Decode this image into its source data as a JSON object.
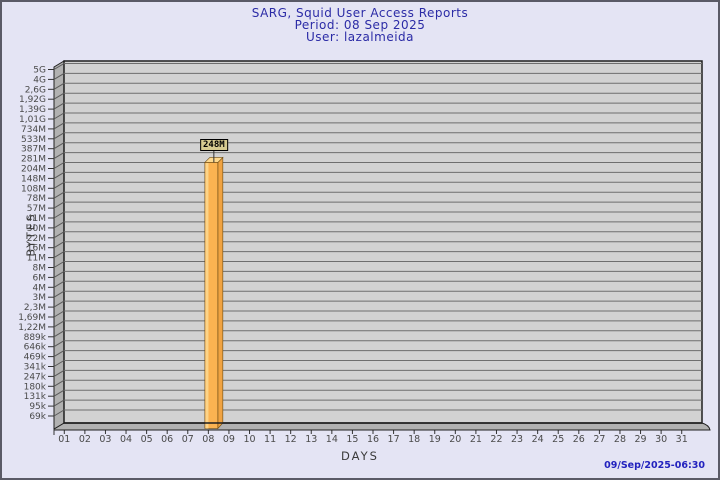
{
  "header": {
    "title": "SARG, Squid User Access Reports",
    "period": "Period: 08 Sep 2025",
    "user": "User: lazalmeida"
  },
  "footer": {
    "timestamp": "09/Sep/2025-06:30"
  },
  "chart_data": {
    "type": "bar",
    "title": "SARG, Squid User Access Reports",
    "subtitle_period": "Period: 08 Sep 2025",
    "subtitle_user": "User: lazalmeida",
    "xlabel": "DAYS",
    "ylabel": "BYTES",
    "y_scale": "log",
    "y_ticks": [
      "5G",
      "4G",
      "2,6G",
      "1,92G",
      "1,39G",
      "1,01G",
      "734M",
      "533M",
      "387M",
      "281M",
      "204M",
      "148M",
      "108M",
      "78M",
      "57M",
      "41M",
      "30M",
      "22M",
      "16M",
      "11M",
      "8M",
      "6M",
      "4M",
      "3M",
      "2,3M",
      "1,69M",
      "1,22M",
      "889k",
      "646k",
      "469k",
      "341k",
      "247k",
      "180k",
      "131k",
      "95k",
      "69k"
    ],
    "x_ticks": [
      "01",
      "02",
      "03",
      "04",
      "05",
      "06",
      "07",
      "08",
      "09",
      "10",
      "11",
      "12",
      "13",
      "14",
      "15",
      "16",
      "17",
      "18",
      "19",
      "20",
      "21",
      "22",
      "23",
      "24",
      "25",
      "26",
      "27",
      "28",
      "29",
      "30",
      "31"
    ],
    "bars": [
      {
        "x": "08",
        "label": "248M",
        "value": 248000000
      }
    ],
    "legend": "none",
    "grid": "horizontal",
    "colors": {
      "background": "#E4E4F4",
      "plot_face": "#D2D2D2",
      "plot_wall": "#B1B1B1",
      "gridline": "#6E6E6E",
      "frame": "#1F1F1F",
      "bar_front": "#FBB351",
      "bar_highlight": "#FDD488",
      "bar_side": "#F0A342",
      "bar_top": "#FDD98F",
      "value_box_bg": "#D7CB90",
      "title_text": "#2B2BA6",
      "timestamp_text": "#2222BE",
      "tick_text": "#4A4A4A",
      "axis_title_text": "#3A3A3A"
    }
  }
}
